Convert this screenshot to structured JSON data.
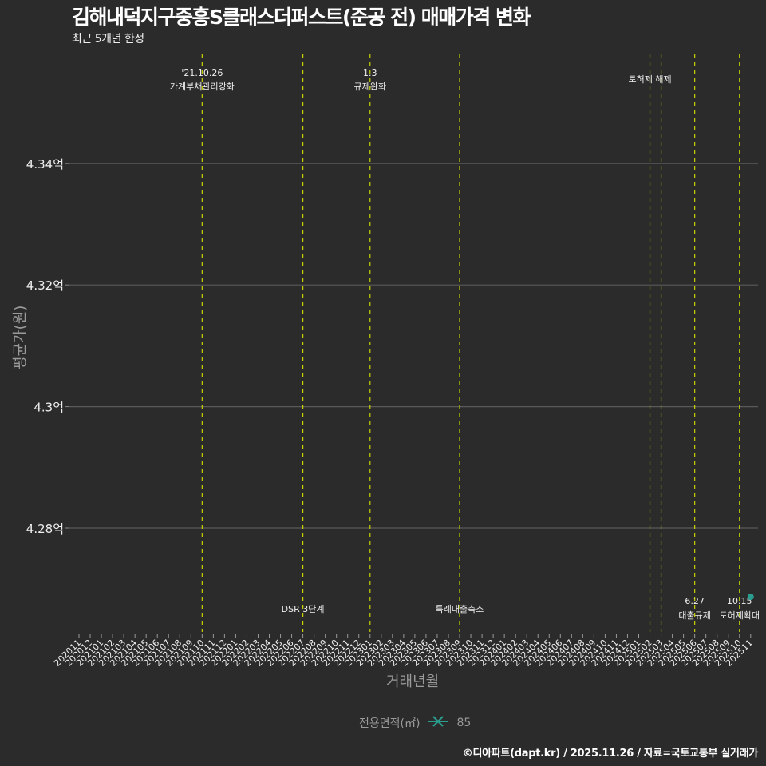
{
  "header": {
    "title": "김해내덕지구중흥S클래스더퍼스트(준공 전) 매매가격 변화",
    "subtitle": "최근 5개년 한정"
  },
  "axes": {
    "xlabel": "거래년월",
    "ylabel": "평균가(원)"
  },
  "legend": {
    "title": "전용면적(㎡)",
    "items": [
      {
        "label": "85",
        "color": "#2a9d8f"
      }
    ]
  },
  "caption": "©디아파트(dapt.kr) / 2025.11.26 / 자료=국토교통부 실거래가",
  "colors": {
    "background": "#2b2b2b",
    "grid": "#5a5a5a",
    "event_line": "#c8d400",
    "series": "#2a9d8f"
  },
  "chart_data": {
    "type": "line",
    "title": "김해내덕지구중흥S클래스더퍼스트(준공 전) 매매가격 변화",
    "subtitle": "최근 5개년 한정",
    "xlabel": "거래년월",
    "ylabel": "평균가(원)",
    "x_ticks": [
      "202011",
      "202012",
      "202101",
      "202102",
      "202103",
      "202104",
      "202105",
      "202106",
      "202107",
      "202108",
      "202109",
      "202110",
      "202111",
      "202112",
      "202201",
      "202202",
      "202203",
      "202204",
      "202205",
      "202206",
      "202207",
      "202208",
      "202209",
      "202210",
      "202211",
      "202212",
      "202301",
      "202302",
      "202303",
      "202304",
      "202305",
      "202306",
      "202307",
      "202308",
      "202309",
      "202310",
      "202311",
      "202312",
      "202401",
      "202402",
      "202403",
      "202404",
      "202405",
      "202406",
      "202407",
      "202408",
      "202409",
      "202410",
      "202411",
      "202412",
      "202501",
      "202502",
      "202503",
      "202504",
      "202505",
      "202506",
      "202507",
      "202508",
      "202509",
      "202510",
      "202511"
    ],
    "y_ticks": [
      {
        "value": 4.28,
        "label": "4.28억"
      },
      {
        "value": 4.3,
        "label": "4.3억"
      },
      {
        "value": 4.32,
        "label": "4.32억"
      },
      {
        "value": 4.34,
        "label": "4.34억"
      }
    ],
    "ylim": [
      4.262,
      4.358
    ],
    "grid": true,
    "legend_position": "bottom",
    "series": [
      {
        "name": "85",
        "color": "#2a9d8f",
        "points": [
          {
            "x": "202511",
            "y": 4.2687
          }
        ]
      }
    ],
    "annotations": [
      {
        "x": "202110",
        "label_top": "'21.10.26",
        "label_bottom": "가계부채관리강화",
        "position": "top"
      },
      {
        "x": "202207",
        "label_top": "",
        "label_bottom": "DSR 3단계",
        "position": "bottom"
      },
      {
        "x": "202301",
        "label_top": "1.3",
        "label_bottom": "규제완화",
        "position": "top"
      },
      {
        "x": "202309",
        "label_top": "",
        "label_bottom": "특례대출축소",
        "position": "bottom"
      },
      {
        "x": "202502",
        "label_top": "",
        "label_bottom": "토허제 해제",
        "position": "top"
      },
      {
        "x": "202503",
        "label_top": "",
        "label_bottom": "",
        "position": "none"
      },
      {
        "x": "202506",
        "label_top": "6.27",
        "label_bottom": "대출규제",
        "position": "bottom"
      },
      {
        "x": "202510",
        "label_top": "10.15",
        "label_bottom": "토허제확대",
        "position": "bottom"
      }
    ]
  }
}
